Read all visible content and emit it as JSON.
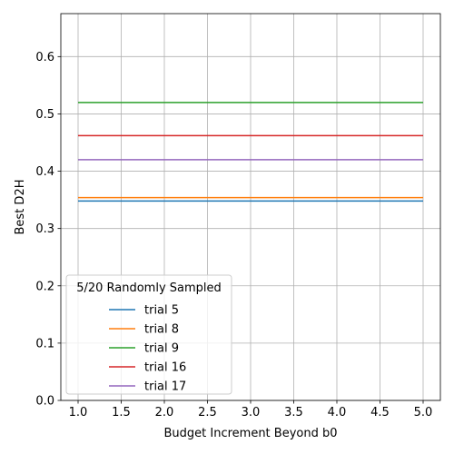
{
  "chart_data": {
    "type": "line",
    "title": "",
    "xlabel": "Budget Increment Beyond b0",
    "ylabel": "Best D2H",
    "xlim": [
      0.8,
      5.2
    ],
    "ylim": [
      0.0,
      0.675
    ],
    "x_ticks": [
      "1.0",
      "1.5",
      "2.0",
      "2.5",
      "3.0",
      "3.5",
      "4.0",
      "4.5",
      "5.0"
    ],
    "y_ticks": [
      "0.0",
      "0.1",
      "0.2",
      "0.3",
      "0.4",
      "0.5",
      "0.6"
    ],
    "grid": true,
    "legend": {
      "title": "5/20 Randomly Sampled",
      "placement": "lower-left"
    },
    "x": [
      1.0,
      5.0
    ],
    "series": [
      {
        "name": "trial 5",
        "color": "#1f77b4",
        "values": [
          0.348,
          0.348
        ]
      },
      {
        "name": "trial 8",
        "color": "#ff7f0e",
        "values": [
          0.354,
          0.354
        ]
      },
      {
        "name": "trial 9",
        "color": "#2ca02c",
        "values": [
          0.52,
          0.52
        ]
      },
      {
        "name": "trial 16",
        "color": "#d62728",
        "values": [
          0.462,
          0.462
        ]
      },
      {
        "name": "trial 17",
        "color": "#9467bd",
        "values": [
          0.42,
          0.42
        ]
      }
    ]
  }
}
